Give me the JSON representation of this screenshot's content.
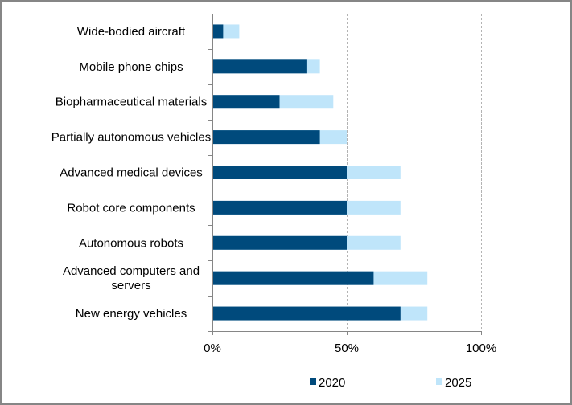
{
  "chart_data": {
    "type": "bar",
    "orientation": "horizontal",
    "stacking": "overlay-cumulative",
    "title": "",
    "xlabel": "",
    "ylabel": "",
    "xlim": [
      0,
      100
    ],
    "x_ticks": [
      0,
      50,
      100
    ],
    "x_tick_labels": [
      "0%",
      "50%",
      "100%"
    ],
    "grid": "vertical dashed at 50% and 100%",
    "legend_position": "bottom",
    "categories": [
      "Wide-bodied aircraft",
      "Mobile phone chips",
      "Biopharmaceutical materials",
      "Partially autonomous vehicles",
      "Advanced medical devices",
      "Robot core components",
      "Autonomous robots",
      "Advanced computers and servers",
      "New energy vehicles"
    ],
    "category_label_lines": [
      [
        "Wide-bodied aircraft"
      ],
      [
        "Mobile phone chips"
      ],
      [
        "Biopharmaceutical materials"
      ],
      [
        "Partially autonomous vehicles"
      ],
      [
        "Advanced medical devices"
      ],
      [
        "Robot core components"
      ],
      [
        "Autonomous robots"
      ],
      [
        "Advanced computers and",
        "servers"
      ],
      [
        "New energy vehicles"
      ]
    ],
    "series": [
      {
        "name": "2020",
        "color": "#004a7c",
        "values": [
          4,
          35,
          25,
          40,
          50,
          50,
          50,
          60,
          70
        ]
      },
      {
        "name": "2025",
        "color": "#bfe5fa",
        "values": [
          10,
          40,
          45,
          50,
          70,
          70,
          70,
          80,
          80
        ]
      }
    ]
  }
}
